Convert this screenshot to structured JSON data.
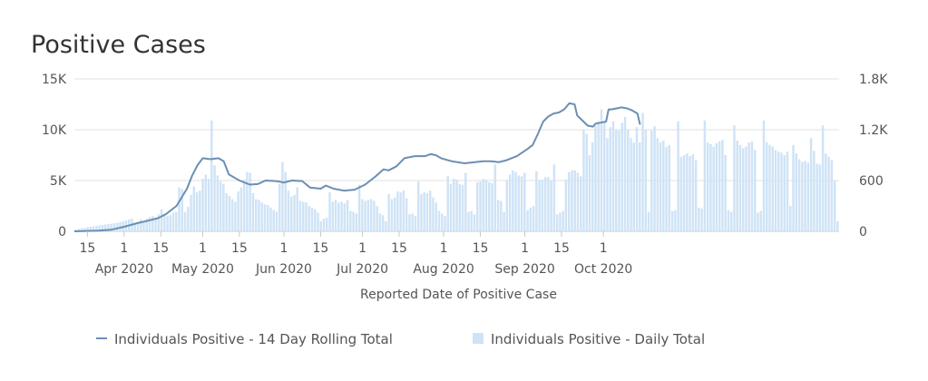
{
  "chart_data": {
    "type": "bar+line",
    "title": "Positive Cases",
    "xlabel": "Reported Date of Positive Case",
    "left_axis": {
      "ticks": [
        "0",
        "5K",
        "10K",
        "15K"
      ],
      "range": [
        0,
        15000
      ]
    },
    "right_axis": {
      "ticks": [
        "0",
        "600",
        "1.2K",
        "1.8K"
      ],
      "range": [
        0,
        1800
      ]
    },
    "x_range_day": [
      -19,
      273
    ],
    "x_ticks": [
      {
        "day": -14,
        "label": "15",
        "month": ""
      },
      {
        "day": 0,
        "label": "1",
        "month": "Apr 2020"
      },
      {
        "day": 14,
        "label": "15",
        "month": ""
      },
      {
        "day": 30,
        "label": "1",
        "month": "May 2020"
      },
      {
        "day": 44,
        "label": "15",
        "month": ""
      },
      {
        "day": 61,
        "label": "1",
        "month": "Jun 2020"
      },
      {
        "day": 75,
        "label": "15",
        "month": ""
      },
      {
        "day": 91,
        "label": "1",
        "month": "Jul 2020"
      },
      {
        "day": 105,
        "label": "15",
        "month": ""
      },
      {
        "day": 122,
        "label": "1",
        "month": "Aug 2020"
      },
      {
        "day": 136,
        "label": "15",
        "month": ""
      },
      {
        "day": 153,
        "label": "1",
        "month": "Sep 2020"
      },
      {
        "day": 167,
        "label": "15",
        "month": ""
      },
      {
        "day": 183,
        "label": "1",
        "month": "Oct 2020"
      }
    ],
    "series": [
      {
        "name": "Individuals Positive - 14 Day Rolling Total",
        "type": "line",
        "axis": "left",
        "color": "#6b8fb3",
        "points": [
          [
            -19,
            0
          ],
          [
            -10,
            60
          ],
          [
            -5,
            150
          ],
          [
            0,
            450
          ],
          [
            5,
            800
          ],
          [
            10,
            1100
          ],
          [
            13,
            1300
          ],
          [
            16,
            1700
          ],
          [
            20,
            2500
          ],
          [
            24,
            4200
          ],
          [
            26,
            5500
          ],
          [
            28,
            6500
          ],
          [
            30,
            7200
          ],
          [
            33,
            7100
          ],
          [
            36,
            7200
          ],
          [
            38,
            6900
          ],
          [
            40,
            5600
          ],
          [
            44,
            5000
          ],
          [
            48,
            4600
          ],
          [
            51,
            4650
          ],
          [
            54,
            5000
          ],
          [
            58,
            4950
          ],
          [
            61,
            4800
          ],
          [
            64,
            5000
          ],
          [
            68,
            4950
          ],
          [
            71,
            4300
          ],
          [
            75,
            4200
          ],
          [
            77,
            4500
          ],
          [
            80,
            4200
          ],
          [
            84,
            4000
          ],
          [
            88,
            4100
          ],
          [
            92,
            4600
          ],
          [
            96,
            5400
          ],
          [
            99,
            6100
          ],
          [
            101,
            6000
          ],
          [
            104,
            6400
          ],
          [
            107,
            7200
          ],
          [
            111,
            7400
          ],
          [
            115,
            7400
          ],
          [
            117,
            7600
          ],
          [
            119,
            7500
          ],
          [
            121,
            7200
          ],
          [
            125,
            6900
          ],
          [
            130,
            6700
          ],
          [
            134,
            6800
          ],
          [
            137,
            6900
          ],
          [
            140,
            6900
          ],
          [
            143,
            6800
          ],
          [
            146,
            7000
          ],
          [
            150,
            7400
          ],
          [
            154,
            8100
          ],
          [
            156,
            8500
          ],
          [
            158,
            9600
          ],
          [
            160,
            10800
          ],
          [
            162,
            11300
          ],
          [
            164,
            11600
          ],
          [
            166,
            11700
          ],
          [
            168,
            12000
          ],
          [
            170,
            12600
          ],
          [
            172,
            12500
          ],
          [
            173,
            11400
          ],
          [
            175,
            10900
          ],
          [
            177,
            10400
          ],
          [
            179,
            10300
          ],
          [
            180,
            10600
          ],
          [
            182,
            10700
          ],
          [
            184,
            10800
          ],
          [
            185,
            12000
          ],
          [
            186,
            12000
          ],
          [
            188,
            12100
          ],
          [
            190,
            12200
          ],
          [
            192,
            12100
          ],
          [
            194,
            11900
          ],
          [
            196,
            11600
          ],
          [
            197,
            10500
          ]
        ]
      },
      {
        "name": "Individuals Positive - Daily Total",
        "type": "bar",
        "axis": "right",
        "color": "#cfe3f6",
        "values": [
          20,
          30,
          35,
          40,
          50,
          55,
          60,
          65,
          70,
          75,
          80,
          85,
          90,
          95,
          100,
          110,
          120,
          130,
          140,
          150,
          100,
          110,
          140,
          120,
          150,
          170,
          180,
          150,
          200,
          260,
          210,
          180,
          190,
          220,
          230,
          520,
          500,
          230,
          290,
          430,
          530,
          460,
          480,
          620,
          670,
          620,
          1310,
          780,
          660,
          590,
          560,
          450,
          420,
          380,
          350,
          470,
          520,
          610,
          700,
          690,
          450,
          380,
          370,
          340,
          320,
          310,
          280,
          250,
          230,
          560,
          820,
          700,
          480,
          410,
          430,
          520,
          360,
          350,
          340,
          300,
          280,
          260,
          220,
          120,
          150,
          160,
          460,
          350,
          370,
          340,
          350,
          330,
          370,
          240,
          230,
          210,
          550,
          380,
          360,
          370,
          380,
          360,
          300,
          210,
          190,
          120,
          440,
          380,
          400,
          470,
          460,
          480,
          390,
          200,
          210,
          180,
          590,
          440,
          460,
          450,
          480,
          400,
          340,
          240,
          210,
          180,
          650,
          560,
          620,
          610,
          560,
          550,
          690,
          230,
          240,
          200,
          580,
          590,
          620,
          610,
          580,
          570,
          790,
          370,
          360,
          230,
          600,
          670,
          720,
          700,
          660,
          650,
          690,
          250,
          280,
          300,
          710,
          600,
          610,
          640,
          640,
          600,
          790,
          200,
          220,
          240,
          610,
          700,
          720,
          720,
          690,
          650,
          1200,
          1150,
          900,
          1050,
          1250,
          1300,
          1440,
          1290,
          1100,
          1230,
          1300,
          1200,
          1190,
          1280,
          1350,
          1200,
          1100,
          1050,
          1230,
          1050,
          1400,
          1200,
          230,
          1190,
          1240,
          1100,
          1050,
          1070,
          1000,
          1020,
          240,
          250,
          1300,
          880,
          900,
          920,
          890,
          910,
          840,
          280,
          270,
          1310,
          1050,
          1030,
          1000,
          1040,
          1060,
          1080,
          900,
          250,
          230,
          1250,
          1070,
          1020,
          980,
          1000,
          1050,
          1060,
          960,
          220,
          240,
          1310,
          1050,
          1020,
          1000,
          960,
          940,
          930,
          900,
          940,
          300,
          1020,
          920,
          850,
          820,
          830,
          810,
          1100,
          950,
          800,
          790,
          1250,
          920,
          880,
          840,
          600,
          120
        ]
      }
    ]
  }
}
